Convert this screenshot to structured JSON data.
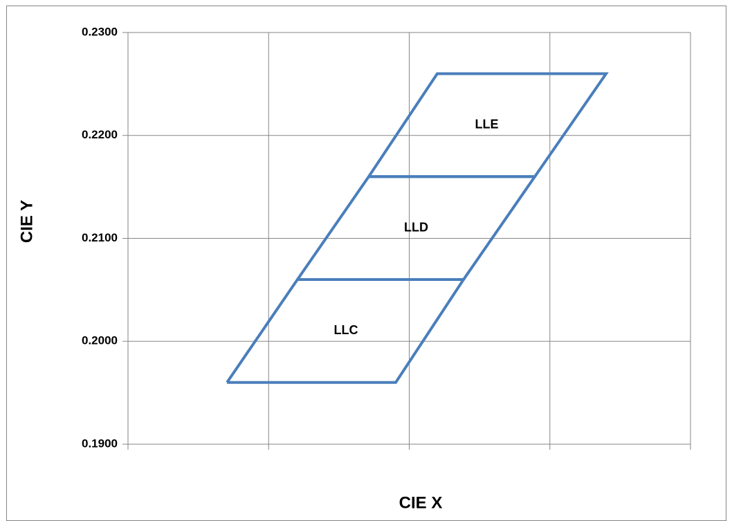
{
  "chart_data": {
    "type": "polygon",
    "x_label": "CIE  X",
    "y_label": "CIE  Y",
    "xlim": [
      0,
      4
    ],
    "xticks": [
      0,
      1,
      2,
      3,
      4
    ],
    "ylim": [
      0.19,
      0.23
    ],
    "yticks": [
      {
        "value": 0.19,
        "label": "0.1900"
      },
      {
        "value": 0.2,
        "label": "0.2000"
      },
      {
        "value": 0.21,
        "label": "0.2100"
      },
      {
        "value": 0.22,
        "label": "0.2200"
      },
      {
        "value": 0.23,
        "label": "0.2300"
      }
    ],
    "grid": true,
    "series": [
      {
        "name": "LLC",
        "color": "#4a7ebb",
        "x": [
          0.704,
          1.904,
          2.386,
          1.205,
          0.704
        ],
        "y": [
          0.196,
          0.196,
          0.206,
          0.206,
          0.196
        ]
      },
      {
        "name": "LLD",
        "color": "#4a7ebb",
        "x": [
          1.205,
          2.386,
          2.893,
          1.712,
          1.205
        ],
        "y": [
          0.206,
          0.206,
          0.216,
          0.216,
          0.206
        ]
      },
      {
        "name": "LLE",
        "color": "#4a7ebb",
        "x": [
          1.712,
          2.893,
          3.4,
          2.199,
          1.712
        ],
        "y": [
          0.216,
          0.216,
          0.226,
          0.226,
          0.216
        ]
      }
    ]
  }
}
